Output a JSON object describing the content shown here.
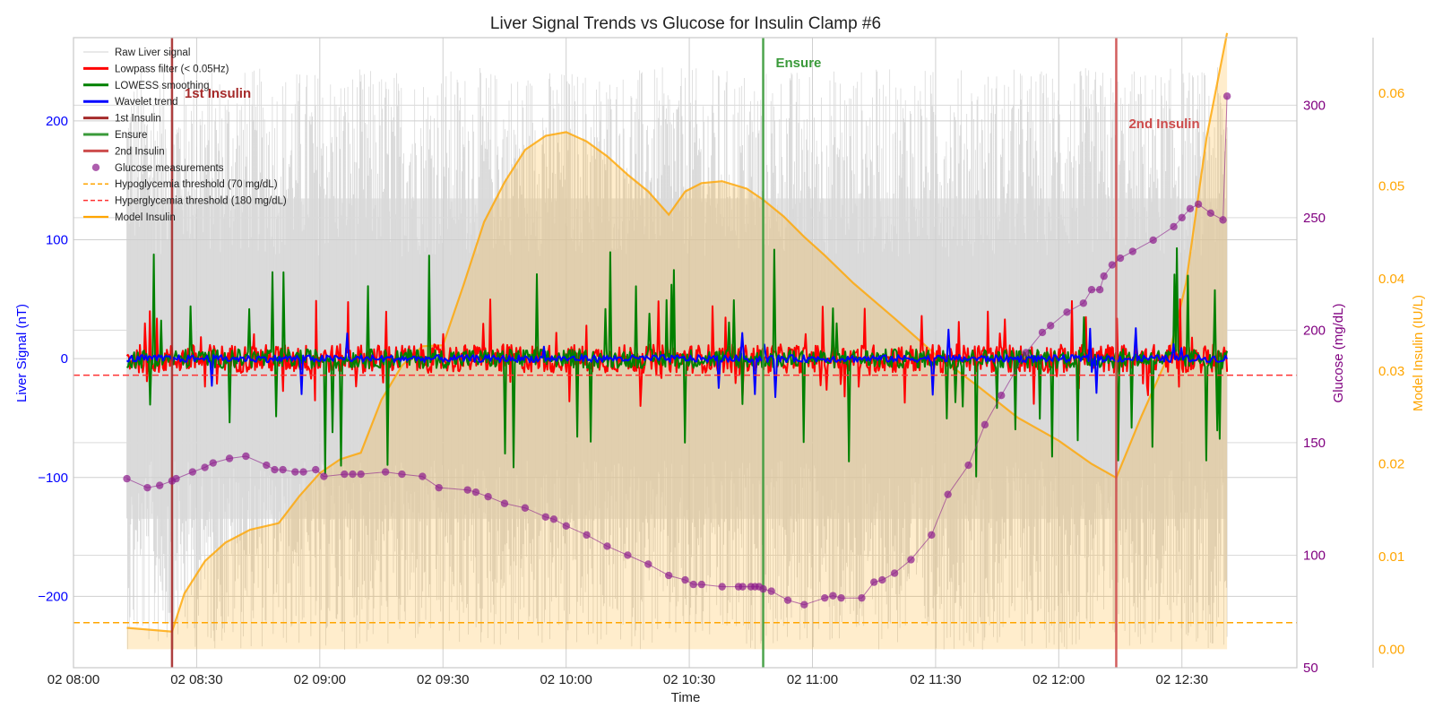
{
  "chart_data": {
    "type": "line",
    "title": "Liver Signal Trends vs Glucose for Insulin Clamp #6",
    "xlabel": "Time",
    "ylabel_left": "Liver Signal (nT)",
    "ylabel_right1": "Glucose (mg/dL)",
    "ylabel_right2": "Model Insulin (IU/L)",
    "x_ticks": [
      "02 08:00",
      "02 08:30",
      "02 09:00",
      "02 09:30",
      "02 10:00",
      "02 10:30",
      "02 11:00",
      "02 11:30",
      "02 12:00",
      "02 12:30"
    ],
    "x_range": [
      "02 08:00",
      "02 12:58"
    ],
    "ylim_left": [
      -260,
      270
    ],
    "yticks_left": [
      -200,
      -100,
      0,
      100,
      200
    ],
    "ylim_glucose": [
      50,
      330
    ],
    "yticks_glucose": [
      50,
      100,
      150,
      200,
      250,
      300
    ],
    "ylim_insulin": [
      -0.002,
      0.066
    ],
    "yticks_insulin": [
      0.0,
      0.01,
      0.02,
      0.03,
      0.04,
      0.05,
      0.06
    ],
    "grid": true,
    "legend_position": "top-left",
    "legend": [
      {
        "label": "Raw Liver signal",
        "color": "#d3d3d3",
        "style": "line-thin"
      },
      {
        "label": "Lowpass filter (< 0.05Hz)",
        "color": "#ff0000",
        "style": "line-thick"
      },
      {
        "label": "LOWESS smoothing",
        "color": "#008000",
        "style": "line-thick"
      },
      {
        "label": "Wavelet trend",
        "color": "#0000ff",
        "style": "line-thick"
      },
      {
        "label": "1st Insulin",
        "color": "#a52a2a",
        "style": "line-thick"
      },
      {
        "label": "Ensure",
        "color": "#3a9a3a",
        "style": "line-thick"
      },
      {
        "label": "2nd Insulin",
        "color": "#cd4c4c",
        "style": "line-thick"
      },
      {
        "label": "Glucose measurements",
        "color": "#8b1a8b",
        "style": "marker"
      },
      {
        "label": "Hypoglycemia threshold (70 mg/dL)",
        "color": "#ffa500",
        "style": "dashed"
      },
      {
        "label": "Hyperglycemia threshold (180 mg/dL)",
        "color": "#ff3333",
        "style": "dashed"
      },
      {
        "label": "Model Insulin",
        "color": "#ffa500",
        "style": "line"
      }
    ],
    "events": [
      {
        "label": "1st Insulin",
        "time": "08:24",
        "color": "#a52a2a"
      },
      {
        "label": "Ensure",
        "time": "10:48",
        "color": "#3a9a3a"
      },
      {
        "label": "2nd Insulin",
        "time": "12:14",
        "color": "#cd4c4c"
      }
    ],
    "thresholds": {
      "hypoglycemia": 70,
      "hyperglycemia": 180
    },
    "glucose": {
      "name": "Glucose measurements",
      "x": [
        "08:13",
        "08:18",
        "08:21",
        "08:24",
        "08:25",
        "08:29",
        "08:32",
        "08:34",
        "08:38",
        "08:42",
        "08:47",
        "08:49",
        "08:51",
        "08:54",
        "08:56",
        "08:59",
        "09:01",
        "09:06",
        "09:08",
        "09:10",
        "09:16",
        "09:20",
        "09:25",
        "09:29",
        "09:36",
        "09:38",
        "09:41",
        "09:45",
        "09:50",
        "09:55",
        "09:57",
        "10:00",
        "10:05",
        "10:10",
        "10:15",
        "10:20",
        "10:25",
        "10:29",
        "10:31",
        "10:33",
        "10:38",
        "10:42",
        "10:43",
        "10:45",
        "10:46",
        "10:47",
        "10:48",
        "10:50",
        "10:54",
        "10:58",
        "11:03",
        "11:05",
        "11:07",
        "11:12",
        "11:15",
        "11:17",
        "11:20",
        "11:24",
        "11:29",
        "11:33",
        "11:38",
        "11:42",
        "11:46",
        "11:52",
        "11:56",
        "11:58",
        "12:02",
        "12:06",
        "12:08",
        "12:10",
        "12:11",
        "12:13",
        "12:15",
        "12:18",
        "12:23",
        "12:28",
        "12:30",
        "12:32",
        "12:34",
        "12:37",
        "12:40",
        "12:41"
      ],
      "y": [
        134,
        130,
        131,
        133,
        134,
        137,
        139,
        141,
        143,
        144,
        140,
        138,
        138,
        137,
        137,
        138,
        135,
        136,
        136,
        136,
        137,
        136,
        135,
        130,
        129,
        128,
        126,
        123,
        121,
        117,
        116,
        113,
        109,
        104,
        100,
        96,
        91,
        89,
        87,
        87,
        86,
        86,
        86,
        86,
        86,
        86,
        85,
        84,
        80,
        78,
        81,
        82,
        81,
        81,
        88,
        89,
        92,
        98,
        109,
        127,
        140,
        158,
        171,
        190,
        199,
        202,
        208,
        212,
        218,
        218,
        224,
        229,
        232,
        235,
        240,
        246,
        250,
        254,
        256,
        252,
        249,
        304
      ]
    },
    "model_insulin": {
      "name": "Model Insulin",
      "x": [
        "08:13",
        "08:24",
        "08:27",
        "08:32",
        "08:37",
        "08:43",
        "08:50",
        "08:55",
        "09:00",
        "09:05",
        "09:10",
        "09:15",
        "09:20",
        "09:25",
        "09:30",
        "09:35",
        "09:40",
        "09:45",
        "09:50",
        "09:55",
        "10:00",
        "10:05",
        "10:10",
        "10:15",
        "10:20",
        "10:25",
        "10:29",
        "10:33",
        "10:38",
        "10:44",
        "10:48",
        "10:53",
        "10:58",
        "11:03",
        "11:10",
        "11:20",
        "11:30",
        "11:40",
        "11:50",
        "12:00",
        "12:08",
        "12:14",
        "12:20",
        "12:27",
        "12:31",
        "12:36",
        "12:41"
      ],
      "y": [
        0.0023,
        0.0019,
        0.006,
        0.0095,
        0.0115,
        0.0129,
        0.0136,
        0.0165,
        0.019,
        0.0205,
        0.0212,
        0.0269,
        0.0306,
        0.0327,
        0.0328,
        0.0393,
        0.0461,
        0.0504,
        0.0539,
        0.0554,
        0.0558,
        0.0548,
        0.0532,
        0.0512,
        0.0494,
        0.0469,
        0.0494,
        0.0503,
        0.0505,
        0.0497,
        0.0485,
        0.0467,
        0.0445,
        0.0425,
        0.0395,
        0.0357,
        0.0318,
        0.0285,
        0.025,
        0.0225,
        0.02,
        0.0185,
        0.025,
        0.032,
        0.0395,
        0.0552,
        0.0665
      ]
    },
    "liver_signal_smoothed": {
      "x_range": [
        "08:13",
        "12:41"
      ],
      "lowpass_band": [
        -40,
        50
      ],
      "lowess_band": [
        -100,
        95
      ],
      "wavelet_band": [
        -60,
        45
      ],
      "raw_band": [
        -245,
        245
      ]
    }
  }
}
